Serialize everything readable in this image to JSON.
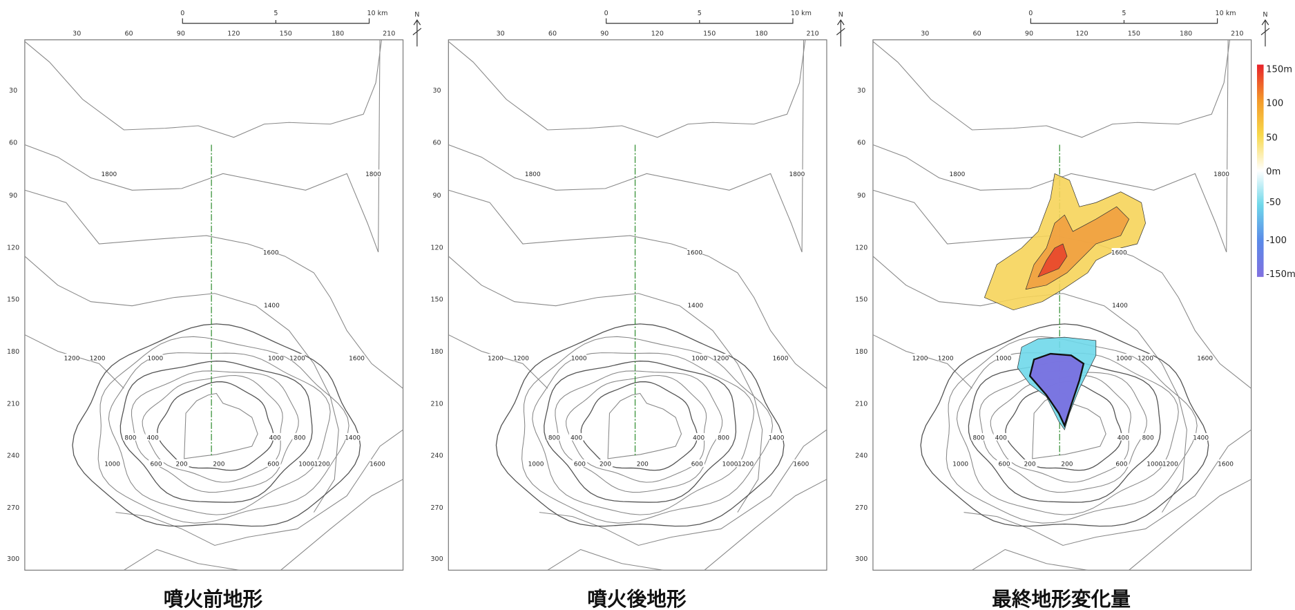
{
  "panels": [
    {
      "title": "噴火前地形",
      "x_ticks": [
        "30",
        "60",
        "90",
        "120",
        "150",
        "180",
        "210"
      ],
      "y_ticks": [
        "30",
        "60",
        "90",
        "120",
        "150",
        "180",
        "210",
        "240",
        "270",
        "300"
      ],
      "scale": [
        "0",
        "5",
        "10 km"
      ],
      "north": "N",
      "contour_labels": [
        "1800",
        "1800",
        "1600",
        "1400",
        "1200",
        "1200",
        "1000",
        "1000",
        "1200",
        "1600",
        "800",
        "400",
        "400",
        "800",
        "1400",
        "1000",
        "600",
        "200",
        "200",
        "600",
        "1000",
        "1200",
        "1600"
      ]
    },
    {
      "title": "噴火後地形",
      "x_ticks": [
        "30",
        "60",
        "90",
        "120",
        "150",
        "180",
        "210"
      ],
      "y_ticks": [
        "30",
        "60",
        "90",
        "120",
        "150",
        "180",
        "210",
        "240",
        "270",
        "300"
      ],
      "scale": [
        "0",
        "5",
        "10 km"
      ],
      "north": "N",
      "contour_labels": [
        "1800",
        "1800",
        "1600",
        "1400",
        "1200",
        "1200",
        "1000",
        "1000",
        "1200",
        "1600",
        "800",
        "400",
        "400",
        "800",
        "1400",
        "1000",
        "600",
        "200",
        "200",
        "600",
        "1000",
        "1200",
        "1600"
      ]
    },
    {
      "title": "最終地形変化量",
      "x_ticks": [
        "30",
        "60",
        "90",
        "120",
        "150",
        "180",
        "210"
      ],
      "y_ticks": [
        "30",
        "60",
        "90",
        "120",
        "150",
        "180",
        "210",
        "240",
        "270",
        "300"
      ],
      "scale": [
        "0",
        "5",
        "10 km"
      ],
      "north": "N",
      "contour_labels": [
        "1800",
        "1800",
        "1600",
        "1400",
        "1200",
        "1200",
        "1000",
        "1000",
        "1200",
        "1600",
        "800",
        "400",
        "400",
        "800",
        "1400",
        "1000",
        "600",
        "200",
        "200",
        "600",
        "1000",
        "1200",
        "1600"
      ]
    }
  ],
  "colorbar": {
    "labels": [
      "150m",
      "100",
      "50",
      "0m",
      "-50",
      "-100",
      "-150m"
    ]
  }
}
